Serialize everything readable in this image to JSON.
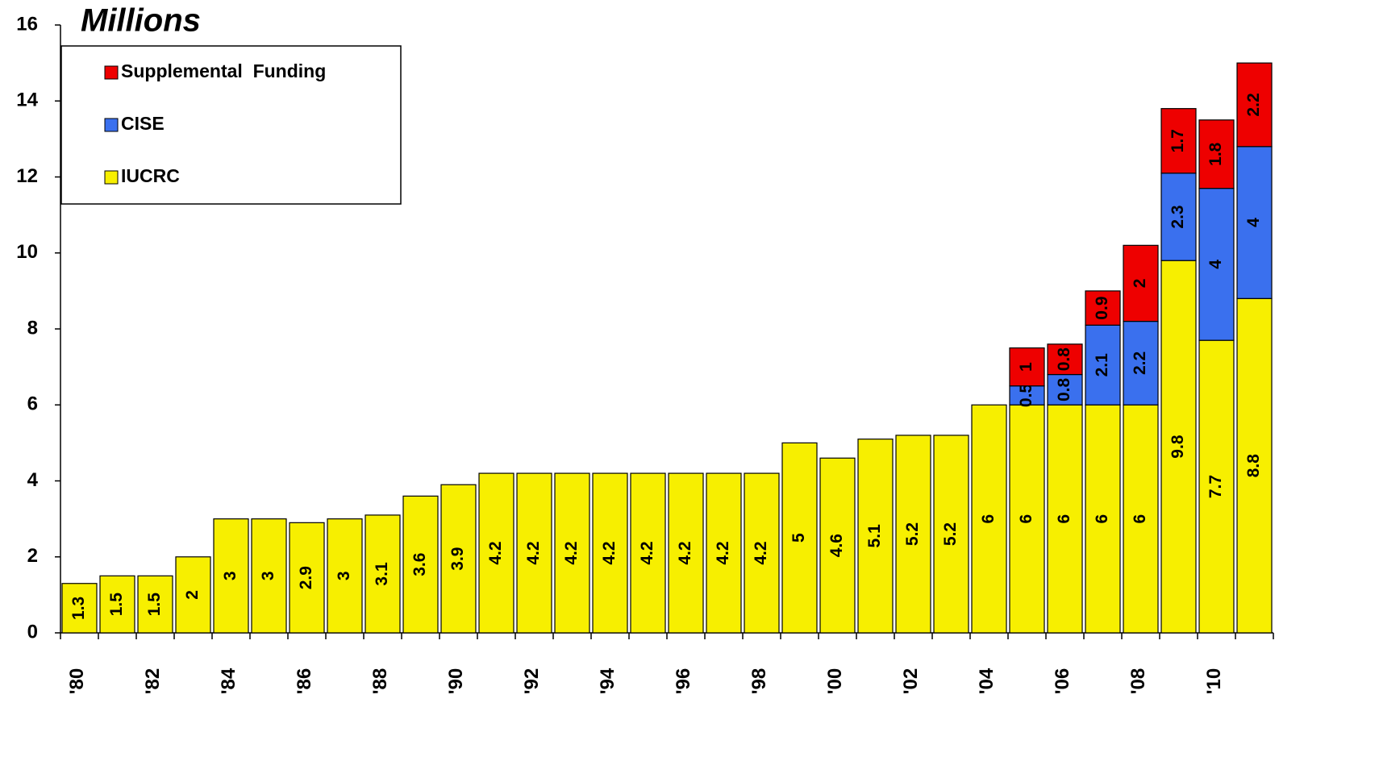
{
  "chart_data": {
    "type": "stacked_bar",
    "title": "Millions",
    "categories": [
      "'80",
      null,
      "'82",
      null,
      "'84",
      null,
      "'86",
      null,
      "'88",
      null,
      "'90",
      null,
      "'92",
      null,
      "'94",
      null,
      "'96",
      null,
      "'98",
      null,
      "'00",
      null,
      "'02",
      null,
      "'04",
      null,
      "'06",
      null,
      "'08",
      null,
      "'10",
      null
    ],
    "series": [
      {
        "name": "IUCRC",
        "color": "#f7ef00",
        "values": [
          1.3,
          1.5,
          1.5,
          2,
          3,
          3,
          2.9,
          3,
          3.1,
          3.6,
          3.9,
          4.2,
          4.2,
          4.2,
          4.2,
          4.2,
          4.2,
          4.2,
          4.2,
          5,
          4.6,
          5.1,
          5.2,
          5.2,
          6,
          6,
          6,
          6,
          6,
          9.8,
          7.7,
          8.8
        ]
      },
      {
        "name": "CISE",
        "color": "#3a70ee",
        "values": [
          null,
          null,
          null,
          null,
          null,
          null,
          null,
          null,
          null,
          null,
          null,
          null,
          null,
          null,
          null,
          null,
          null,
          null,
          null,
          null,
          null,
          null,
          null,
          null,
          null,
          0.5,
          0.8,
          2.1,
          2.2,
          2.3,
          4,
          4
        ]
      },
      {
        "name": "Supplemental  Funding",
        "color": "#ee0000",
        "values": [
          null,
          null,
          null,
          null,
          null,
          null,
          null,
          null,
          null,
          null,
          null,
          null,
          null,
          null,
          null,
          null,
          null,
          null,
          null,
          null,
          null,
          null,
          null,
          null,
          null,
          1,
          0.8,
          0.9,
          2,
          1.7,
          1.8,
          2.2
        ]
      }
    ],
    "ylim": [
      0,
      16
    ],
    "yticks": [
      0,
      2,
      4,
      6,
      8,
      10,
      12,
      14,
      16
    ],
    "legend": "upper left",
    "legend_order": "reversed"
  }
}
